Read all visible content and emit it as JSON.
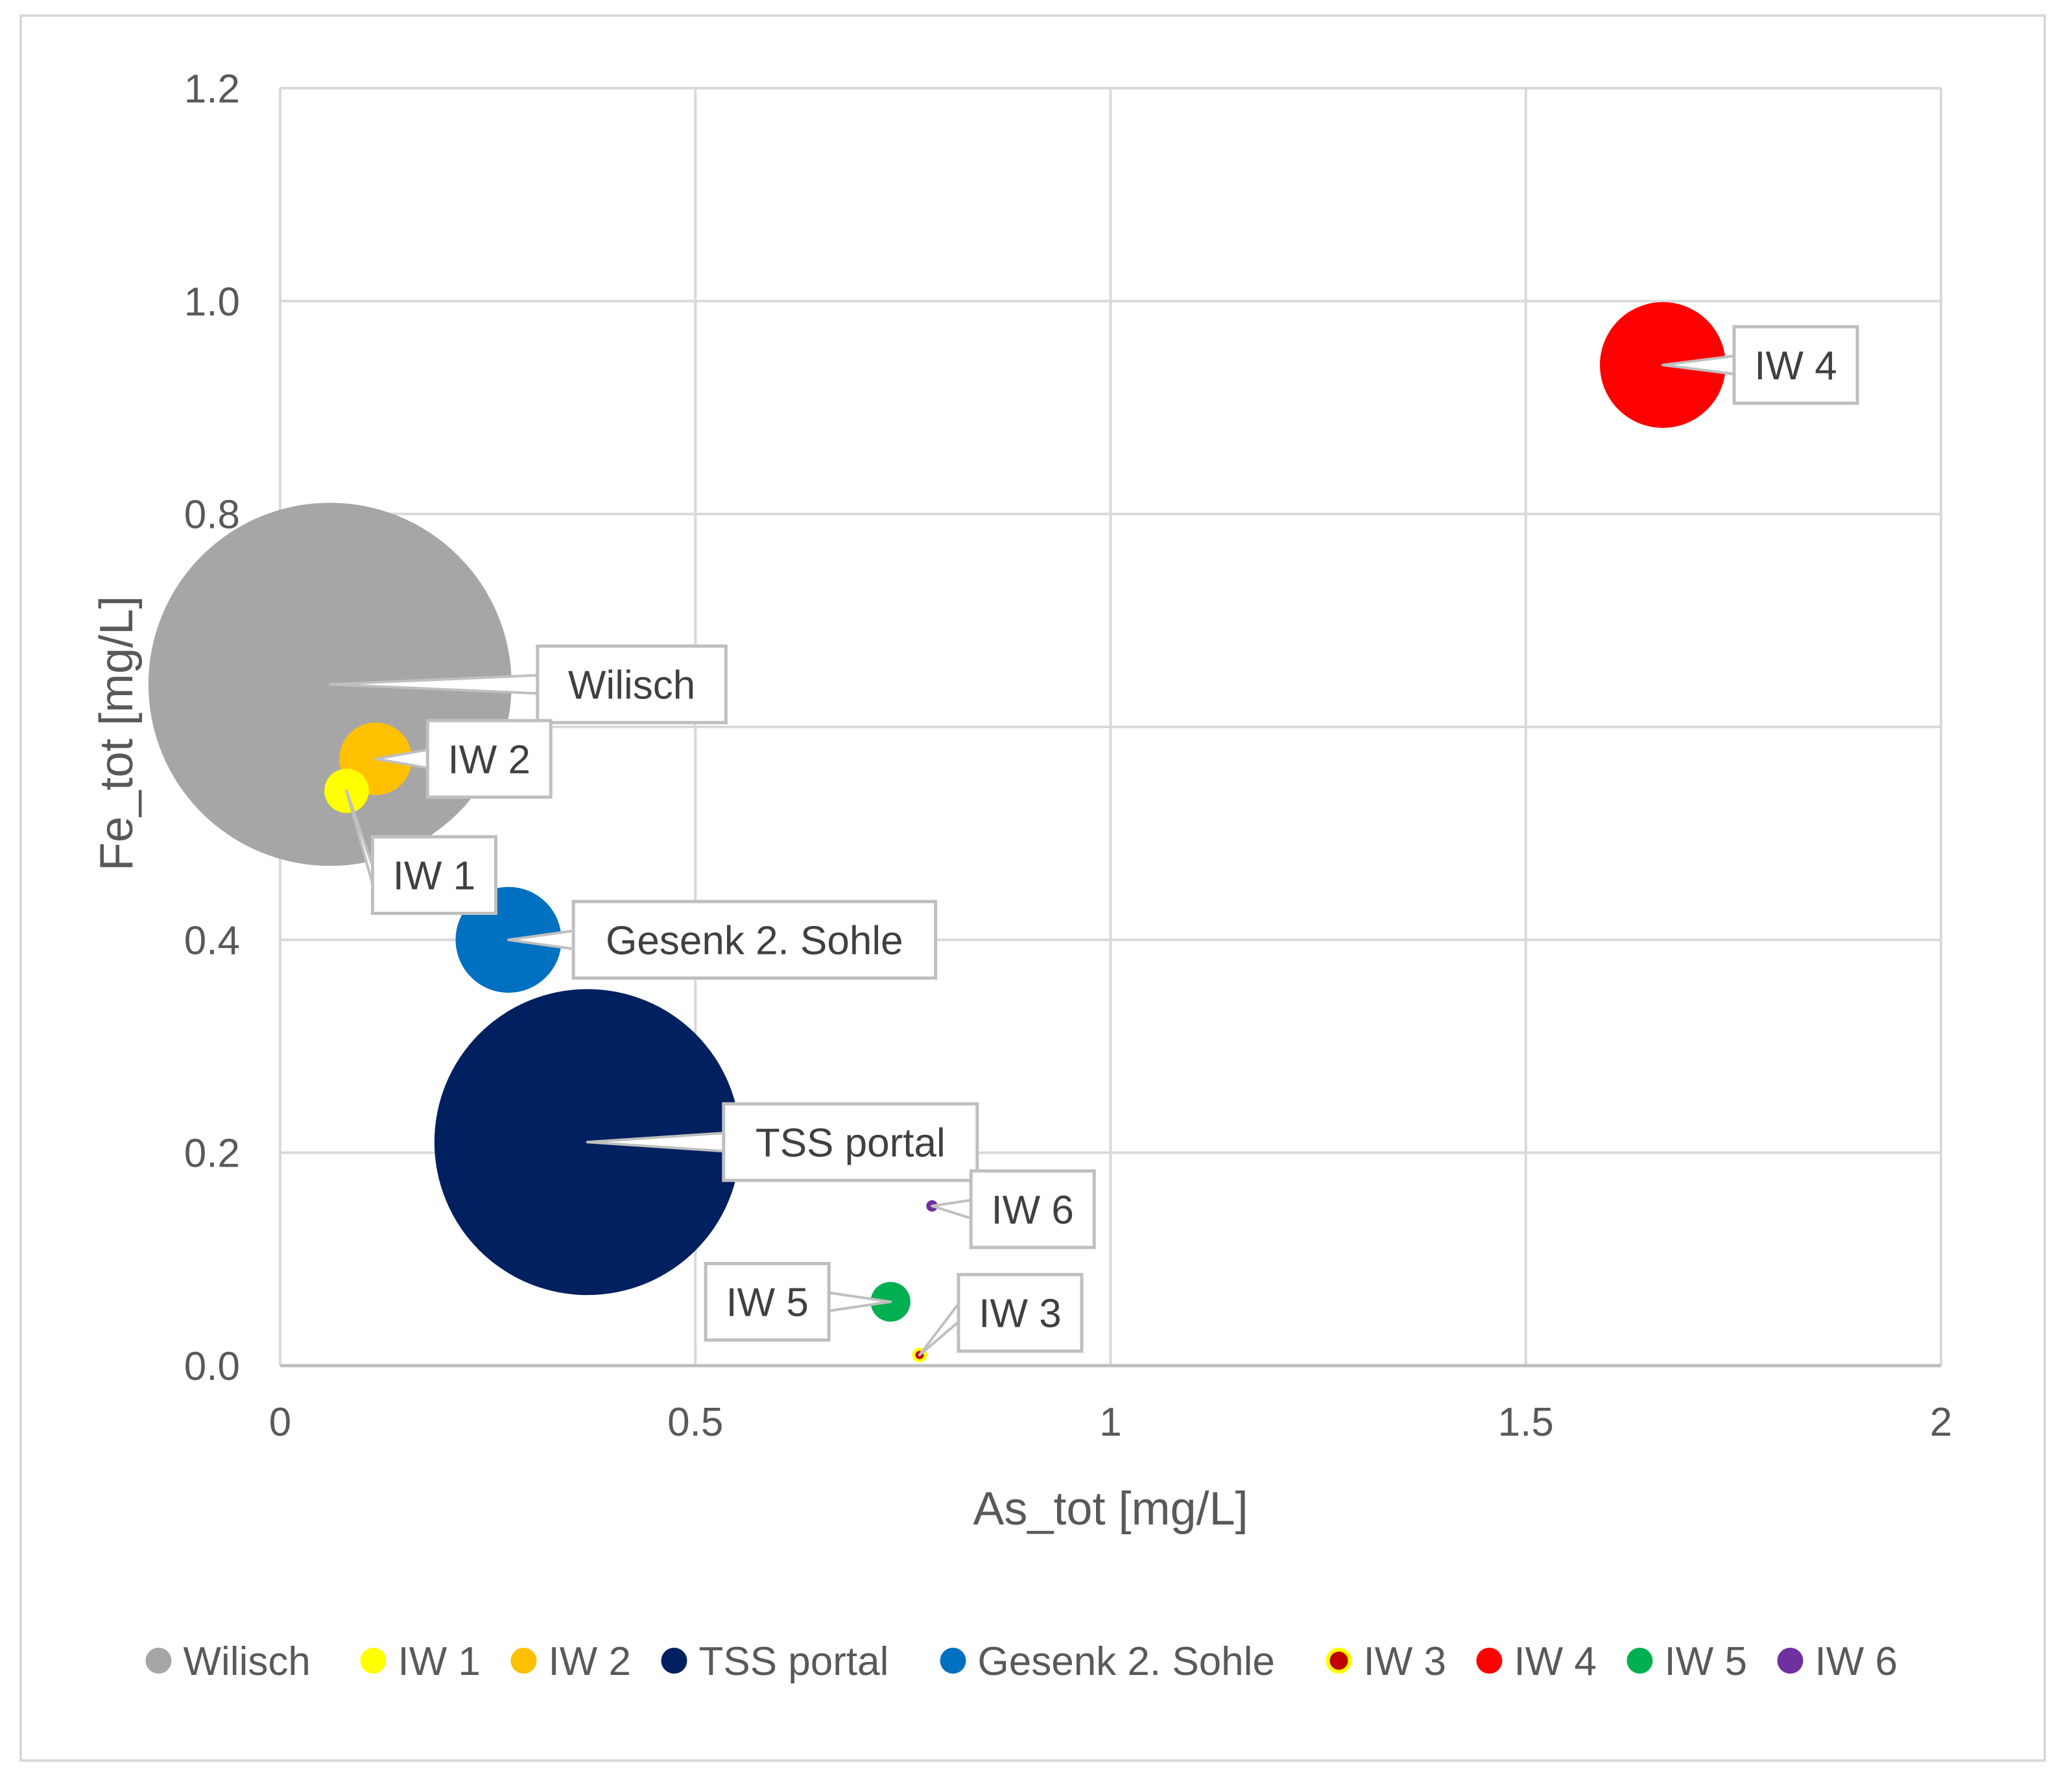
{
  "chart_data": {
    "type": "bubble",
    "xlabel": "As_tot [mg/L]",
    "ylabel": "Fe_tot [mg/L]",
    "xlim": [
      0,
      2
    ],
    "ylim": [
      0,
      1.2
    ],
    "x_ticks": [
      "0",
      "0.5",
      "1",
      "1.5",
      "2"
    ],
    "y_ticks": [
      "0.0",
      "0.2",
      "0.4",
      "0.6",
      "0.8",
      "1.0",
      "1.2"
    ],
    "grid": true,
    "legend_position": "bottom",
    "series": [
      {
        "name": "Wilisch",
        "label": "Wilisch",
        "x": 0.06,
        "y": 0.64,
        "size": 100,
        "color": "#a6a6a6"
      },
      {
        "name": "IW 1",
        "label": "IW 1",
        "x": 0.08,
        "y": 0.54,
        "size": 1.5,
        "color": "#ffff00"
      },
      {
        "name": "IW 2",
        "label": "IW 2",
        "x": 0.115,
        "y": 0.57,
        "size": 4,
        "color": "#ffc000"
      },
      {
        "name": "TSS portal",
        "label": "TSS portal",
        "x": 0.37,
        "y": 0.21,
        "size": 71,
        "color": "#002060"
      },
      {
        "name": "Gesenk 2. Sohle",
        "label": "Gesenk 2. Sohle",
        "x": 0.275,
        "y": 0.4,
        "size": 8.5,
        "color": "#0070c0"
      },
      {
        "name": "IW 3",
        "label": "IW 3",
        "x": 0.77,
        "y": 0.01,
        "size": 0.1,
        "color": "#c00000",
        "border": "#ffff00"
      },
      {
        "name": "IW 4",
        "label": "IW 4",
        "x": 1.665,
        "y": 0.94,
        "size": 12,
        "color": "#ff0000"
      },
      {
        "name": "IW 5",
        "label": "IW 5",
        "x": 0.735,
        "y": 0.06,
        "size": 1.2,
        "color": "#00b050"
      },
      {
        "name": "IW 6",
        "label": "IW 6",
        "x": 0.785,
        "y": 0.15,
        "size": 0.1,
        "color": "#7030a0"
      }
    ]
  }
}
